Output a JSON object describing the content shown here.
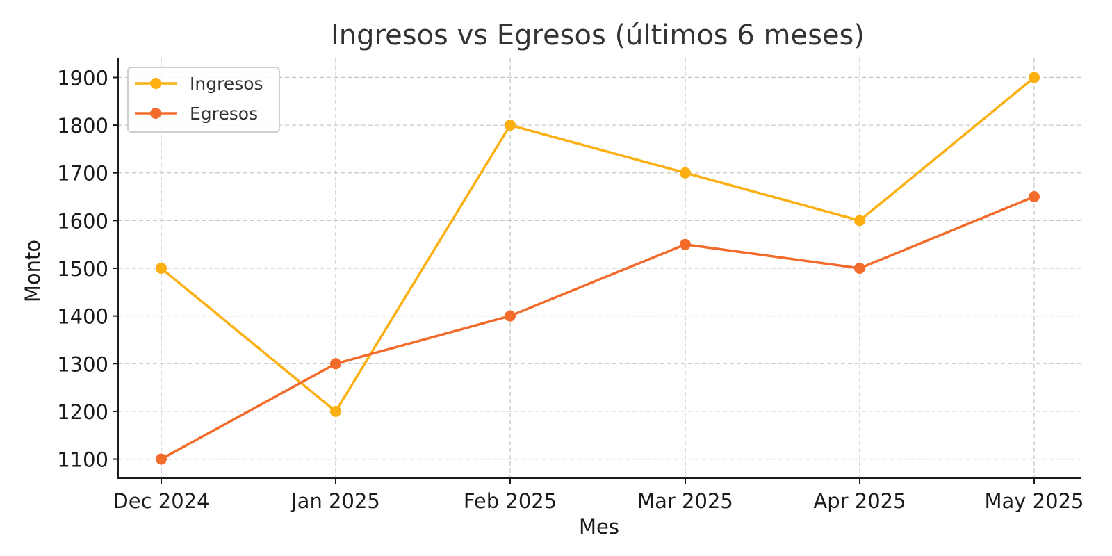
{
  "chart_data": {
    "type": "line",
    "title": "Ingresos vs Egresos (últimos 6 meses)",
    "xlabel": "Mes",
    "ylabel": "Monto",
    "categories": [
      "Dec 2024",
      "Jan 2025",
      "Feb 2025",
      "Mar 2025",
      "Apr 2025",
      "May 2025"
    ],
    "yticks": [
      1100,
      1200,
      1300,
      1400,
      1500,
      1600,
      1700,
      1800,
      1900
    ],
    "ylim": [
      1060,
      1940
    ],
    "grid": true,
    "legend_position": "top-left",
    "series": [
      {
        "name": "Ingresos",
        "color": "#FBAF11",
        "values": [
          1500,
          1200,
          1800,
          1700,
          1600,
          1900
        ]
      },
      {
        "name": "Egresos",
        "color": "#F26B2A",
        "values": [
          1100,
          1300,
          1400,
          1550,
          1500,
          1650
        ]
      }
    ]
  }
}
